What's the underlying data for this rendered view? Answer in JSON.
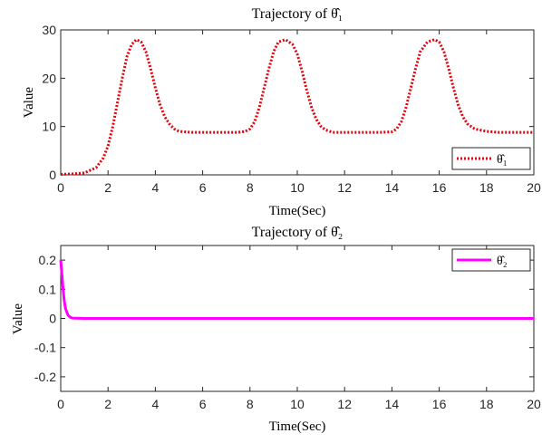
{
  "chart_data": [
    {
      "type": "line",
      "title": "Trajectory of θ̂₁",
      "xlabel": "",
      "ylabel": "Value",
      "xlim": [
        0,
        20
      ],
      "ylim": [
        0,
        30
      ],
      "xticks": [
        "0",
        "2",
        "4",
        "6",
        "8",
        "10",
        "12",
        "14",
        "16",
        "18",
        "20"
      ],
      "yticks": [
        "0",
        "10",
        "20",
        "30"
      ],
      "grid": false,
      "legend": "bottom-right",
      "series": [
        {
          "name": "θ̂₁",
          "color": "#e8000b",
          "style": "dotted",
          "x": [
            0,
            0.5,
            1,
            1.5,
            1.8,
            2,
            2.2,
            2.4,
            2.6,
            2.8,
            3,
            3.2,
            3.4,
            3.6,
            3.8,
            4,
            4.2,
            4.4,
            4.6,
            4.8,
            5,
            5.5,
            6,
            6.5,
            7,
            7.5,
            7.8,
            8,
            8.2,
            8.4,
            8.6,
            8.8,
            9,
            9.2,
            9.5,
            9.8,
            10,
            10.2,
            10.4,
            10.6,
            10.8,
            11,
            11.2,
            11.5,
            12,
            12.5,
            13,
            13.5,
            14,
            14.2,
            14.4,
            14.6,
            14.8,
            15,
            15.2,
            15.5,
            15.8,
            16,
            16.2,
            16.4,
            16.6,
            16.8,
            17,
            17.2,
            17.5,
            18,
            18.5,
            19,
            19.5,
            20
          ],
          "y": [
            0.1,
            0.2,
            0.4,
            1.5,
            3.5,
            6,
            10,
            15,
            20,
            24.5,
            27,
            28,
            27.5,
            25.5,
            22,
            18,
            14.5,
            12,
            10.5,
            9.5,
            9,
            8.8,
            8.8,
            8.8,
            8.8,
            8.8,
            9,
            9.5,
            11,
            14,
            18,
            22,
            25.5,
            27.5,
            28,
            27,
            25,
            21.5,
            17.5,
            14,
            11.5,
            10,
            9.3,
            8.8,
            8.8,
            8.8,
            8.8,
            8.8,
            8.9,
            9.5,
            11,
            14,
            18,
            22,
            25.5,
            27.5,
            28,
            27.5,
            25.5,
            22,
            18,
            14.5,
            12,
            10.5,
            9.5,
            9,
            8.8,
            8.8,
            8.8,
            8.8
          ]
        }
      ]
    },
    {
      "type": "line",
      "title": "Trajectory of θ̂₂",
      "xlabel": "Time(Sec)",
      "ylabel": "Value",
      "xlim": [
        0,
        20
      ],
      "ylim": [
        -0.25,
        0.25
      ],
      "xticks": [
        "0",
        "2",
        "4",
        "6",
        "8",
        "10",
        "12",
        "14",
        "16",
        "18",
        "20"
      ],
      "yticks": [
        "-0.2",
        "-0.1",
        "0",
        "0.1",
        "0.2"
      ],
      "grid": false,
      "legend": "top-right",
      "series": [
        {
          "name": "θ̂₂",
          "color": "#ff00ff",
          "style": "solid",
          "x": [
            0,
            0.05,
            0.1,
            0.15,
            0.2,
            0.3,
            0.4,
            0.5,
            1,
            2,
            5,
            10,
            15,
            20
          ],
          "y": [
            0.2,
            0.15,
            0.1,
            0.06,
            0.035,
            0.012,
            0.004,
            0.001,
            0,
            0,
            0,
            0,
            0,
            0
          ]
        }
      ]
    }
  ],
  "top_xlabel": "Time(Sec)"
}
